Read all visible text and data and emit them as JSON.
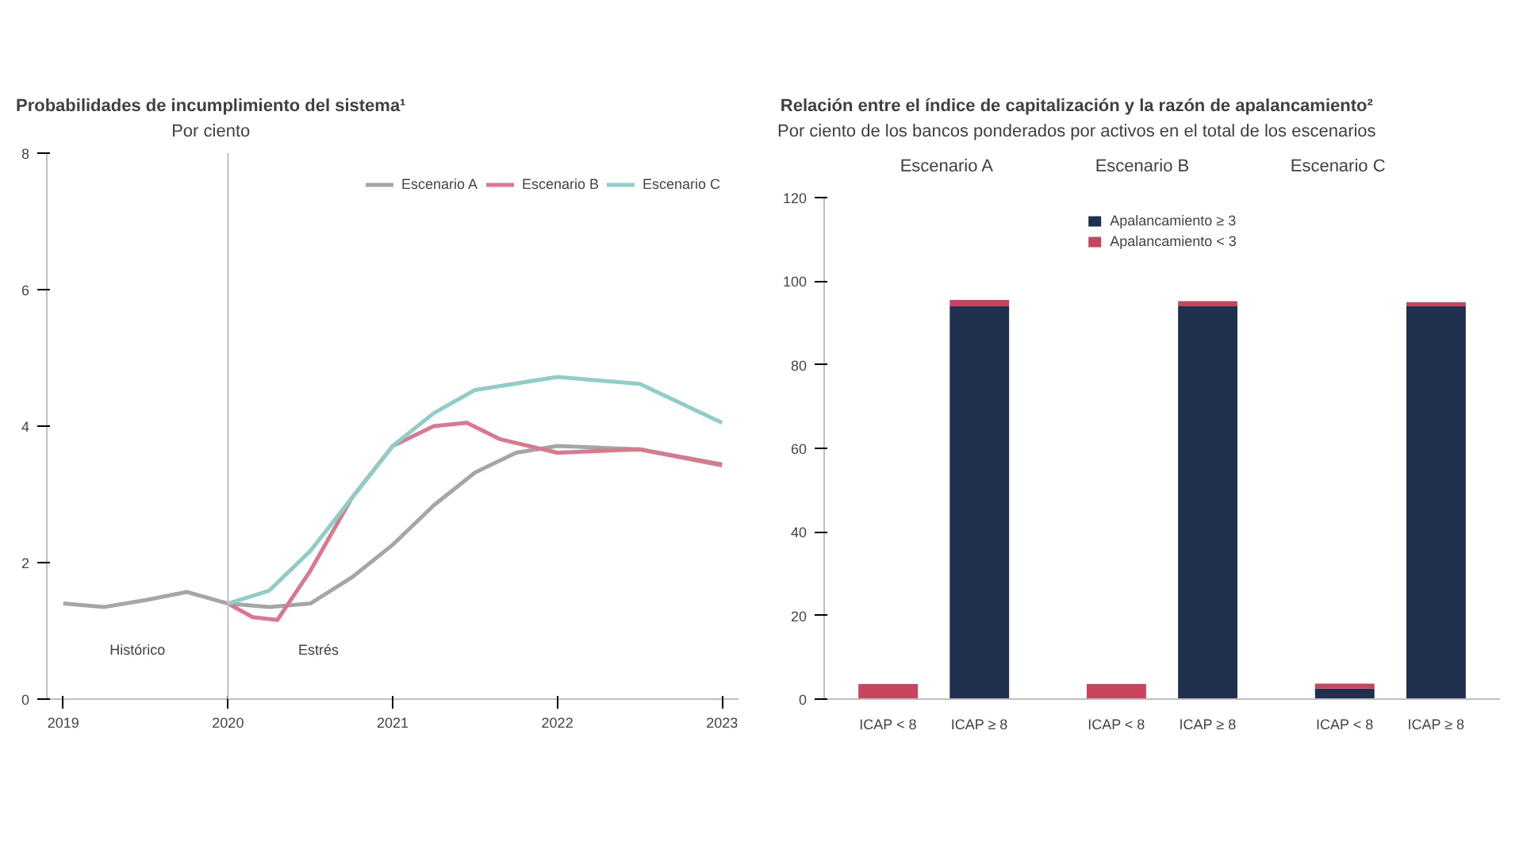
{
  "chart_data": [
    {
      "type": "line",
      "title": "Probabilidades de incumplimiento del sistema¹",
      "subtitle": "Por ciento",
      "xlim": [
        2018.9,
        2023.1
      ],
      "xticks": [
        2019,
        2020,
        2021,
        2022,
        2023
      ],
      "ylim": [
        0,
        8
      ],
      "yticks": [
        0,
        2,
        4,
        6,
        8
      ],
      "grid": false,
      "legend": "top right",
      "line_style": "solid",
      "series": [
        {
          "name": "Escenario A",
          "color": "#a6a6a6",
          "x": [
            2019,
            2019.25,
            2019.5,
            2019.75,
            2020,
            2020.25,
            2020.5,
            2020.75,
            2021,
            2021.25,
            2021.5,
            2021.75,
            2022,
            2022.5,
            2023
          ],
          "values": [
            1.4,
            1.35,
            1.45,
            1.57,
            1.4,
            1.35,
            1.4,
            1.78,
            2.26,
            2.84,
            3.32,
            3.61,
            3.71,
            3.66,
            3.42
          ]
        },
        {
          "name": "Escenario B",
          "color": "#d9788f",
          "x": [
            2020,
            2020.15,
            2020.3,
            2020.5,
            2020.75,
            2021,
            2021.25,
            2021.45,
            2021.65,
            2022,
            2022.5,
            2023
          ],
          "values": [
            1.4,
            1.2,
            1.16,
            1.88,
            2.94,
            3.71,
            4.0,
            4.05,
            3.81,
            3.61,
            3.66,
            3.44
          ]
        },
        {
          "name": "Escenario C",
          "color": "#8fcdc8",
          "x": [
            2020,
            2020.25,
            2020.5,
            2020.75,
            2021,
            2021.25,
            2021.5,
            2022,
            2022.5,
            2023
          ],
          "values": [
            1.4,
            1.59,
            2.17,
            2.94,
            3.71,
            4.19,
            4.53,
            4.72,
            4.62,
            4.05
          ]
        }
      ],
      "ref_lines": [
        {
          "axis": "x",
          "value": 2020,
          "label": null,
          "color": "#bfbfbf"
        }
      ],
      "annotations": [
        "Histórico",
        "Estrés"
      ]
    },
    {
      "type": "bar",
      "stacked": true,
      "title": "Relación entre el índice de capitalización y la razón de apalancamiento²",
      "subtitle": "Por ciento de los bancos ponderados por activos en el total de los escenarios",
      "categories": [
        "ICAP < 8",
        "ICAP ≥ 8",
        "ICAP < 8",
        "ICAP ≥ 8",
        "ICAP < 8",
        "ICAP ≥ 8"
      ],
      "ylim": [
        0,
        120
      ],
      "yticks": [
        0,
        20,
        40,
        60,
        80,
        100,
        120
      ],
      "grid": false,
      "legend": "top",
      "series": [
        {
          "name": "Apalancamiento ≥ 3",
          "color": "#1f2f4e",
          "values": [
            null,
            94,
            null,
            94,
            2.5,
            94
          ]
        },
        {
          "name": "Apalancamiento < 3",
          "color": "#c8445f",
          "values": [
            3.6,
            1.5,
            3.6,
            1.2,
            1.2,
            1.0
          ]
        }
      ],
      "annotations": [
        "Escenario A",
        "Escenario B",
        "Escenario C"
      ]
    }
  ]
}
